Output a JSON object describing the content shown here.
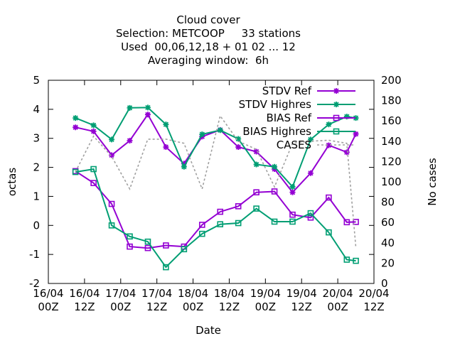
{
  "chart_data": {
    "type": "line",
    "title_lines": [
      "Cloud cover",
      "Selection: METCOOP     33 stations",
      "Used  00,06,12,18 + 01 02 ... 12",
      "Averaging window:  6h"
    ],
    "xlabel": "Date",
    "ylabel": "octas",
    "y2label": "No cases",
    "xlim": [
      0,
      16
    ],
    "ylim": [
      -2,
      5
    ],
    "y2lim": [
      0,
      200
    ],
    "x_ticks": [
      {
        "x": 0,
        "line1": "16/04",
        "line2": "00Z"
      },
      {
        "x": 2,
        "line1": "16/04",
        "line2": "12Z"
      },
      {
        "x": 4,
        "line1": "17/04",
        "line2": "00Z"
      },
      {
        "x": 6,
        "line1": "17/04",
        "line2": "12Z"
      },
      {
        "x": 8,
        "line1": "18/04",
        "line2": "00Z"
      },
      {
        "x": 10,
        "line1": "18/04",
        "line2": "12Z"
      },
      {
        "x": 12,
        "line1": "19/04",
        "line2": "00Z"
      },
      {
        "x": 14,
        "line1": "19/04",
        "line2": "12Z"
      },
      {
        "x": 16,
        "line1": "20/04",
        "line2": "00Z"
      },
      {
        "x": 18,
        "line1": "20/04",
        "line2": "12Z"
      }
    ],
    "y_ticks": [
      "-2",
      "-1",
      "0",
      "1",
      "2",
      "3",
      "4",
      "5"
    ],
    "y2_ticks": [
      "0",
      "20",
      "40",
      "60",
      "80",
      "100",
      "120",
      "140",
      "160",
      "180",
      "200"
    ],
    "legend_position": "top-right",
    "grid": false,
    "series": [
      {
        "name": "STDV Ref",
        "color": "#9400d3",
        "marker": "star",
        "x": [
          1.5,
          2.5,
          3.5,
          4.5,
          5.5,
          6.5,
          7.5,
          8.5,
          9.5,
          10.5,
          11.5,
          12.5,
          13.5,
          14.5,
          15.5,
          16.5,
          17.0
        ],
        "y": [
          3.38,
          3.24,
          2.42,
          2.92,
          3.82,
          2.7,
          2.13,
          3.06,
          3.29,
          2.7,
          2.54,
          1.94,
          1.14,
          1.8,
          2.76,
          2.52,
          3.15
        ]
      },
      {
        "name": "STDV Highres",
        "color": "#009e73",
        "marker": "star",
        "x": [
          1.5,
          2.5,
          3.5,
          4.5,
          5.5,
          6.5,
          7.5,
          8.5,
          9.5,
          10.5,
          11.5,
          12.5,
          13.5,
          14.5,
          15.5,
          16.5,
          17.0
        ],
        "y": [
          3.7,
          3.45,
          2.96,
          4.05,
          4.06,
          3.48,
          2.02,
          3.14,
          3.28,
          2.98,
          2.1,
          2.02,
          1.33,
          2.96,
          3.48,
          3.75,
          3.7
        ]
      },
      {
        "name": "BIAS Ref",
        "color": "#9400d3",
        "marker": "square",
        "x": [
          1.5,
          2.5,
          3.5,
          4.5,
          5.5,
          6.5,
          7.5,
          8.5,
          9.5,
          10.5,
          11.5,
          12.5,
          13.5,
          14.5,
          15.5,
          16.5,
          17.0
        ],
        "y": [
          1.87,
          1.46,
          0.74,
          -0.73,
          -0.78,
          -0.69,
          -0.73,
          0.02,
          0.47,
          0.66,
          1.14,
          1.17,
          0.37,
          0.27,
          0.96,
          0.11,
          0.12
        ]
      },
      {
        "name": "BIAS Highres",
        "color": "#009e73",
        "marker": "square",
        "x": [
          1.5,
          2.5,
          3.5,
          4.5,
          5.5,
          6.5,
          7.5,
          8.5,
          9.5,
          10.5,
          11.5,
          12.5,
          13.5,
          14.5,
          15.5,
          16.5,
          17.0
        ],
        "y": [
          1.84,
          1.94,
          0.0,
          -0.38,
          -0.56,
          -1.44,
          -0.82,
          -0.29,
          0.04,
          0.08,
          0.58,
          0.13,
          0.13,
          0.42,
          -0.24,
          -1.18,
          -1.22
        ]
      },
      {
        "name": "CASES",
        "color": "#a0a0a0",
        "dash": true,
        "axis": "y2",
        "x": [
          1.5,
          2.5,
          3.5,
          4.5,
          5.5,
          6.5,
          7.5,
          8.5,
          9.5,
          10.5,
          11.5,
          12.5,
          13.5,
          14.5,
          15.5,
          16.5,
          17.0
        ],
        "y": [
          110,
          145,
          125,
          93,
          142,
          142,
          138,
          93,
          165,
          140,
          132,
          95,
          138,
          140,
          141,
          138,
          35
        ]
      }
    ]
  }
}
